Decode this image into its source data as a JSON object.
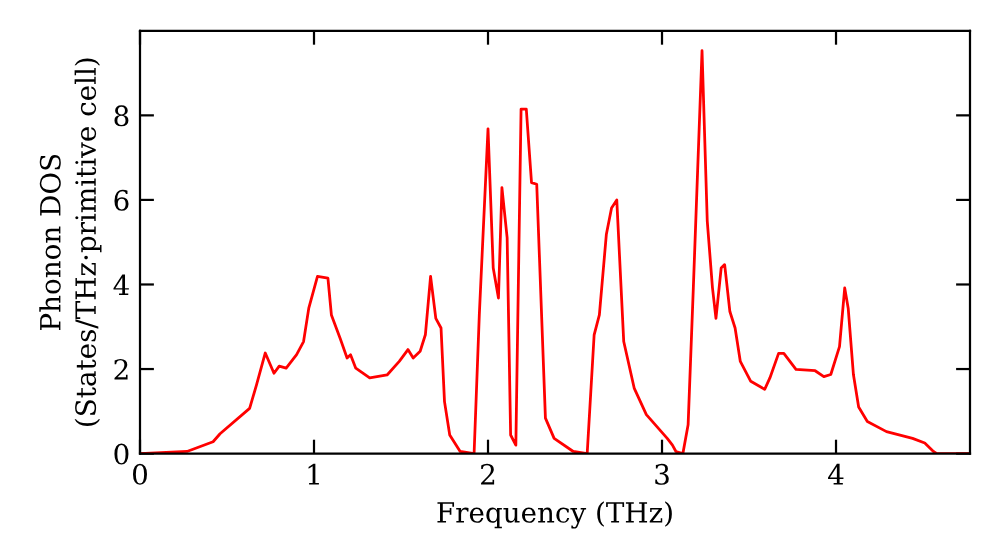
{
  "chart_data": {
    "type": "line",
    "xlabel": "Frequency (THz)",
    "ylabel": "Phonon DOS\n(States/THz·primitive cell)",
    "xlim": [
      0,
      4.77
    ],
    "ylim": [
      0,
      10
    ],
    "xticks": [
      0,
      1,
      2,
      3,
      4
    ],
    "yticks": [
      0,
      2,
      4,
      6,
      8
    ],
    "grid": false,
    "marker": "none",
    "line_style": "solid",
    "series": [
      {
        "color": "#ff0000",
        "x": [
          0,
          0.27,
          0.42,
          0.46,
          0.63,
          0.67,
          0.72,
          0.77,
          0.8,
          0.84,
          0.9,
          0.94,
          0.97,
          1.02,
          1.08,
          1.1,
          1.15,
          1.19,
          1.21,
          1.24,
          1.32,
          1.42,
          1.49,
          1.54,
          1.57,
          1.61,
          1.64,
          1.67,
          1.7,
          1.73,
          1.75,
          1.78,
          1.84,
          1.92,
          1.95,
          2.0,
          2.03,
          2.06,
          2.08,
          2.11,
          2.13,
          2.16,
          2.19,
          2.22,
          2.25,
          2.28,
          2.33,
          2.38,
          2.49,
          2.57,
          2.61,
          2.64,
          2.68,
          2.71,
          2.74,
          2.78,
          2.84,
          2.91,
          3.03,
          3.06,
          3.08,
          3.12,
          3.15,
          3.18,
          3.23,
          3.26,
          3.29,
          3.31,
          3.34,
          3.36,
          3.39,
          3.42,
          3.45,
          3.51,
          3.59,
          3.62,
          3.67,
          3.7,
          3.77,
          3.88,
          3.93,
          3.97,
          4.02,
          4.05,
          4.07,
          4.1,
          4.13,
          4.18,
          4.29,
          4.44,
          4.51,
          4.56,
          4.58,
          4.77
        ],
        "values": [
          0,
          0.05,
          0.28,
          0.47,
          1.07,
          1.63,
          2.38,
          1.9,
          2.07,
          2.02,
          2.34,
          2.65,
          3.44,
          4.19,
          4.15,
          3.28,
          2.73,
          2.26,
          2.34,
          2.02,
          1.79,
          1.86,
          2.18,
          2.46,
          2.26,
          2.42,
          2.81,
          4.19,
          3.2,
          2.97,
          1.23,
          0.44,
          0.05,
          0,
          3.28,
          7.68,
          4.39,
          3.68,
          6.29,
          5.1,
          0.44,
          0.2,
          8.15,
          8.15,
          6.41,
          6.37,
          0.84,
          0.36,
          0.05,
          0,
          2.81,
          3.28,
          5.18,
          5.81,
          6.0,
          2.65,
          1.55,
          0.92,
          0.36,
          0.2,
          0.05,
          0,
          0.68,
          3.92,
          9.53,
          5.5,
          3.92,
          3.2,
          4.39,
          4.47,
          3.36,
          2.97,
          2.18,
          1.71,
          1.52,
          1.79,
          2.37,
          2.37,
          1.99,
          1.96,
          1.82,
          1.87,
          2.53,
          3.92,
          3.44,
          1.87,
          1.1,
          0.76,
          0.52,
          0.36,
          0.25,
          0.05,
          0,
          0
        ]
      }
    ]
  }
}
